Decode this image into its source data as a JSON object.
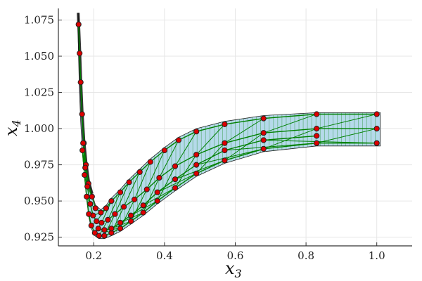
{
  "chart_data": {
    "type": "scatter",
    "title": "",
    "xlabel": "x",
    "xlabel_sub": "3",
    "ylabel": "x",
    "ylabel_sub": "4",
    "xlim": [
      0.1,
      1.1
    ],
    "ylim": [
      0.919,
      1.083
    ],
    "x_ticks": [
      0.2,
      0.4,
      0.6,
      0.8,
      1.0
    ],
    "x_tick_labels": [
      "0.2",
      "0.4",
      "0.6",
      "0.8",
      "1.0"
    ],
    "y_ticks": [
      0.925,
      0.95,
      0.975,
      1.0,
      1.025,
      1.05,
      1.075
    ],
    "y_tick_labels": [
      "0.925",
      "0.950",
      "0.975",
      "1.000",
      "1.025",
      "1.050",
      "1.075"
    ],
    "grid": true,
    "legend": "none",
    "colors": {
      "points": "#dd0000",
      "point_edge": "#222222",
      "lines": "#008000",
      "band_fill": "#a8d4e6",
      "band_edge": "#222222",
      "dark_edge": "#111111"
    },
    "series": [
      {
        "x": [
          1.0,
          0.83,
          0.68,
          0.57,
          0.49,
          0.44,
          0.4,
          0.36,
          0.33,
          0.3,
          0.275,
          0.25,
          0.235,
          0.22,
          0.205,
          0.195,
          0.185,
          0.178,
          0.172,
          0.167,
          0.163,
          0.16,
          0.157
        ],
        "y": [
          1.01,
          1.01,
          1.007,
          1.003,
          0.998,
          0.992,
          0.985,
          0.977,
          0.97,
          0.963,
          0.956,
          0.95,
          0.945,
          0.942,
          0.945,
          0.953,
          0.962,
          0.975,
          0.99,
          1.01,
          1.032,
          1.052,
          1.072
        ]
      },
      {
        "x": [
          1.0,
          0.83,
          0.68,
          0.57,
          0.49,
          0.43,
          0.385,
          0.35,
          0.315,
          0.285,
          0.26,
          0.24,
          0.222,
          0.208,
          0.198,
          0.19,
          0.182,
          0.176,
          0.17
        ],
        "y": [
          1.0,
          1.0,
          0.997,
          0.99,
          0.982,
          0.974,
          0.966,
          0.958,
          0.951,
          0.946,
          0.941,
          0.937,
          0.935,
          0.936,
          0.94,
          0.948,
          0.96,
          0.973,
          0.99
        ]
      },
      {
        "x": [
          1.0,
          0.83,
          0.68,
          0.57,
          0.49,
          0.43,
          0.38,
          0.34,
          0.305,
          0.275,
          0.25,
          0.23,
          0.215,
          0.203,
          0.193,
          0.186,
          0.18,
          0.174,
          0.168
        ],
        "y": [
          0.99,
          0.99,
          0.986,
          0.978,
          0.969,
          0.959,
          0.95,
          0.942,
          0.936,
          0.931,
          0.928,
          0.926,
          0.926,
          0.928,
          0.933,
          0.941,
          0.953,
          0.968,
          0.985
        ]
      },
      {
        "x": [
          0.83,
          0.68,
          0.57,
          0.49,
          0.43,
          0.38,
          0.34,
          0.305,
          0.275,
          0.25,
          0.23,
          0.213
        ],
        "y": [
          0.995,
          0.992,
          0.985,
          0.975,
          0.965,
          0.956,
          0.947,
          0.94,
          0.935,
          0.931,
          0.93,
          0.931
        ]
      }
    ],
    "band_upper": {
      "x": [
        1.01,
        0.83,
        0.68,
        0.57,
        0.49,
        0.44,
        0.4,
        0.36,
        0.33,
        0.3,
        0.275,
        0.25,
        0.235,
        0.22,
        0.205,
        0.195,
        0.185,
        0.178,
        0.172,
        0.167,
        0.163,
        0.16,
        0.156
      ],
      "y": [
        1.011,
        1.011,
        1.009,
        1.005,
        1.0,
        0.994,
        0.987,
        0.979,
        0.972,
        0.965,
        0.958,
        0.952,
        0.947,
        0.944,
        0.947,
        0.955,
        0.964,
        0.977,
        0.992,
        1.012,
        1.035,
        1.056,
        1.08
      ]
    },
    "band_lower": {
      "x": [
        1.01,
        0.83,
        0.68,
        0.57,
        0.49,
        0.43,
        0.38,
        0.34,
        0.305,
        0.275,
        0.25,
        0.23,
        0.215,
        0.203,
        0.193,
        0.186,
        0.18,
        0.174,
        0.168,
        0.163,
        0.159,
        0.156
      ],
      "y": [
        0.988,
        0.988,
        0.984,
        0.976,
        0.967,
        0.957,
        0.948,
        0.94,
        0.934,
        0.929,
        0.926,
        0.924,
        0.924,
        0.926,
        0.931,
        0.939,
        0.951,
        0.966,
        0.983,
        1.005,
        1.03,
        1.06
      ]
    }
  }
}
